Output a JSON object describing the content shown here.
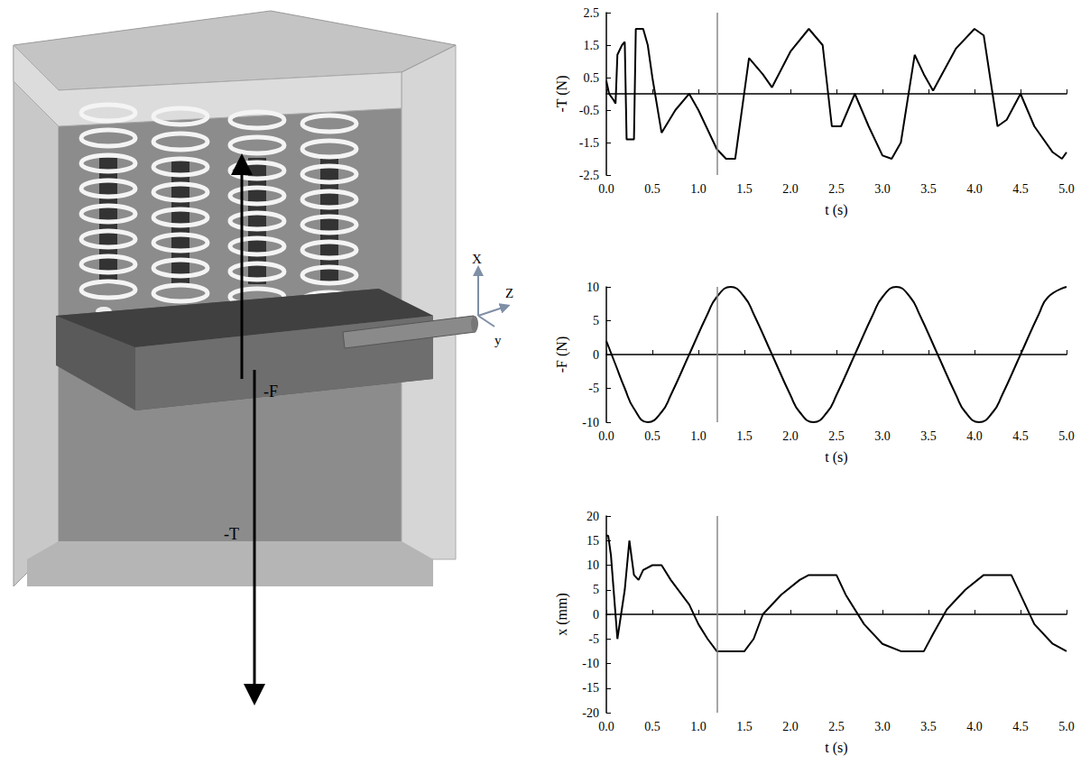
{
  "diagram": {
    "axis_labels": [
      "X",
      "Z",
      "y"
    ],
    "force_labels": [
      "-F",
      "-T"
    ]
  },
  "chart_data": [
    {
      "type": "line",
      "y_label": "-T (N)",
      "x_label": "t (s)",
      "color": "#000000",
      "line_style": "solid",
      "grid": false,
      "vline": 1.2,
      "x": [
        0.0,
        0.03,
        0.08,
        0.1,
        0.12,
        0.17,
        0.2,
        0.22,
        0.3,
        0.32,
        0.4,
        0.45,
        0.5,
        0.6,
        0.75,
        0.9,
        1.0,
        1.2,
        1.3,
        1.4,
        1.55,
        1.7,
        1.8,
        2.0,
        2.2,
        2.35,
        2.45,
        2.55,
        2.7,
        2.85,
        3.0,
        3.1,
        3.2,
        3.35,
        3.45,
        3.55,
        3.8,
        4.0,
        4.1,
        4.25,
        4.35,
        4.5,
        4.65,
        4.85,
        4.95,
        5.0
      ],
      "values": [
        0.4,
        0.0,
        -0.2,
        -0.3,
        1.2,
        1.5,
        1.6,
        -1.4,
        -1.4,
        2.0,
        2.0,
        1.5,
        0.5,
        -1.2,
        -0.5,
        0.0,
        -0.5,
        -1.7,
        -2.0,
        -2.0,
        1.1,
        0.6,
        0.2,
        1.3,
        2.0,
        1.5,
        -1.0,
        -1.0,
        0.0,
        -1.0,
        -1.9,
        -2.0,
        -1.5,
        1.2,
        0.6,
        0.1,
        1.4,
        2.0,
        1.8,
        -1.0,
        -0.8,
        0.0,
        -1.0,
        -1.8,
        -2.0,
        -1.8
      ],
      "xlim": [
        0,
        5
      ],
      "xticks": [
        {
          "value": 0,
          "label": "0.0"
        },
        0.5,
        {
          "value": 1,
          "label": "1.0"
        },
        1.5,
        {
          "value": 2,
          "label": "2.0"
        },
        2.5,
        {
          "value": 3,
          "label": "3.0"
        },
        3.5,
        {
          "value": 4,
          "label": "4.0"
        },
        4.5,
        {
          "value": 5,
          "label": "5.0"
        }
      ],
      "ylim": [
        -2.5,
        2.5
      ],
      "yticks": [
        -2.5,
        -1.5,
        -0.5,
        0.5,
        1.5,
        2.5
      ]
    },
    {
      "type": "line",
      "y_label": "-F (N)",
      "x_label": "t (s)",
      "color": "#000000",
      "line_style": "smooth",
      "grid": false,
      "vline": 1.2,
      "x": [
        0.0,
        0.1,
        0.2,
        0.3,
        0.45,
        0.6,
        0.7,
        0.9,
        1.1,
        1.2,
        1.35,
        1.5,
        1.6,
        1.8,
        2.0,
        2.1,
        2.25,
        2.4,
        2.5,
        2.7,
        2.9,
        3.0,
        3.15,
        3.3,
        3.4,
        3.6,
        3.8,
        3.9,
        4.05,
        4.2,
        4.3,
        4.5,
        4.7,
        4.8,
        5.0
      ],
      "values": [
        2,
        -1.5,
        -5,
        -8,
        -10,
        -8.5,
        -6,
        0,
        6,
        8.5,
        10,
        8.5,
        6,
        0,
        -6,
        -8.5,
        -10,
        -8.5,
        -6,
        0,
        6,
        8.5,
        10,
        8.5,
        6,
        0,
        -6,
        -8.5,
        -10,
        -8.5,
        -6,
        0,
        6,
        8.5,
        10
      ],
      "xlim": [
        0,
        5
      ],
      "xticks": [
        {
          "value": 0,
          "label": "0.0"
        },
        0.5,
        {
          "value": 1,
          "label": "1.0"
        },
        1.5,
        {
          "value": 2,
          "label": "2.0"
        },
        2.5,
        {
          "value": 3,
          "label": "3.0"
        },
        3.5,
        {
          "value": 4,
          "label": "4.0"
        },
        4.5,
        {
          "value": 5,
          "label": "5.0"
        }
      ],
      "ylim": [
        -10,
        10
      ],
      "yticks": [
        -10,
        -5,
        0,
        5,
        10
      ]
    },
    {
      "type": "line",
      "y_label": "x (mm)",
      "x_label": "t (s)",
      "color": "#000000",
      "line_style": "solid",
      "grid": false,
      "vline": 1.2,
      "x": [
        0.0,
        0.02,
        0.05,
        0.12,
        0.2,
        0.25,
        0.3,
        0.35,
        0.4,
        0.5,
        0.6,
        0.7,
        0.9,
        1.0,
        1.1,
        1.2,
        1.5,
        1.6,
        1.7,
        1.9,
        2.1,
        2.2,
        2.5,
        2.6,
        2.8,
        3.0,
        3.2,
        3.45,
        3.55,
        3.7,
        3.9,
        4.1,
        4.4,
        4.5,
        4.65,
        4.85,
        5.0
      ],
      "values": [
        16,
        16,
        12,
        -5,
        5,
        15,
        8,
        7,
        9,
        10,
        10,
        7,
        2,
        -2,
        -5,
        -7.5,
        -7.5,
        -5,
        0,
        4,
        7,
        8,
        8,
        4,
        -2,
        -6,
        -7.5,
        -7.5,
        -4,
        1,
        5,
        8,
        8,
        4,
        -2,
        -6,
        -7.5
      ],
      "xlim": [
        0,
        5
      ],
      "xticks": [
        {
          "value": 0,
          "label": "0.0"
        },
        0.5,
        {
          "value": 1,
          "label": "1.0"
        },
        1.5,
        {
          "value": 2,
          "label": "2.0"
        },
        2.5,
        {
          "value": 3,
          "label": "3.0"
        },
        3.5,
        {
          "value": 4,
          "label": "4.0"
        },
        4.5,
        {
          "value": 5,
          "label": "5.0"
        }
      ],
      "ylim": [
        -20,
        20
      ],
      "yticks": [
        -20,
        -15,
        -10,
        -5,
        0,
        5,
        10,
        15,
        20
      ]
    }
  ]
}
